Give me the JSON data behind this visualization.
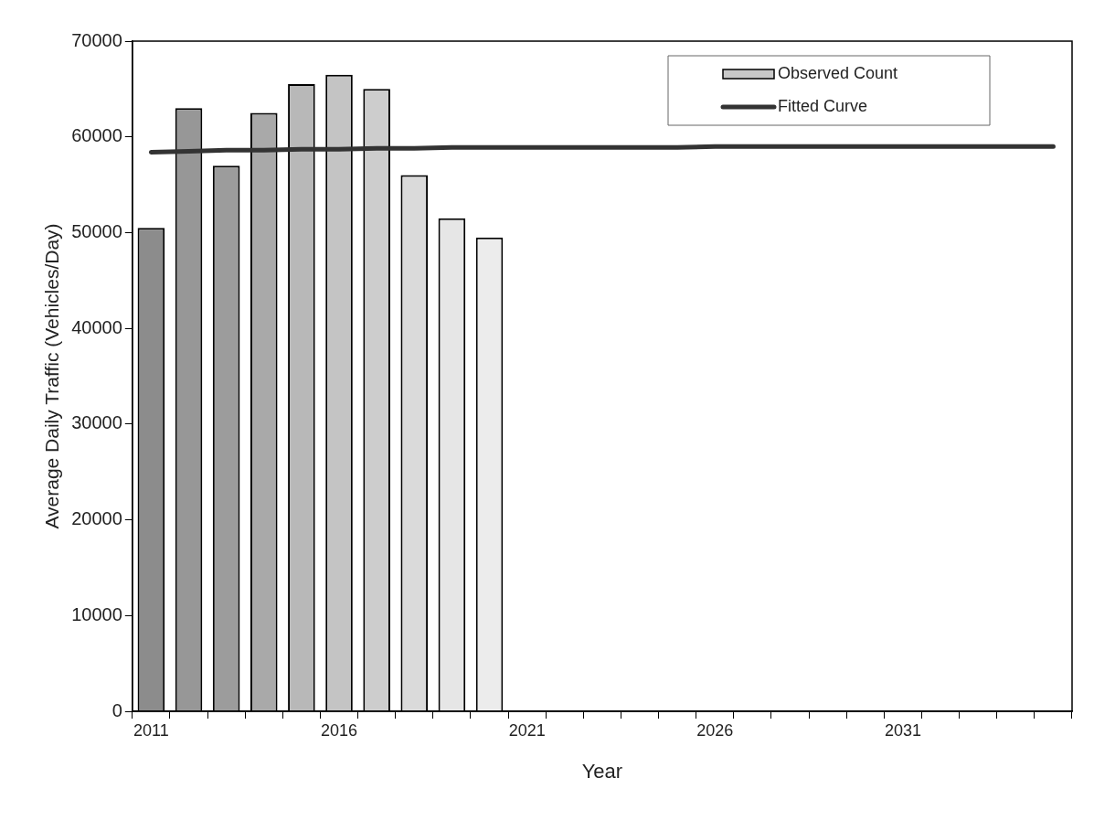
{
  "chart_data": {
    "type": "bar",
    "xlabel": "Year",
    "ylabel": "Average Daily Traffic (Vehicles/Day)",
    "categories": [
      "2011",
      null,
      null,
      null,
      null,
      "2016",
      null,
      null,
      null,
      null,
      "2021",
      null,
      null,
      null,
      null,
      "2026",
      null,
      null,
      null,
      null,
      "2031",
      null,
      null,
      null,
      null
    ],
    "series": [
      {
        "name": "Observed Count",
        "color": "#c8c8c8",
        "colors": [
          "#8c8c8c",
          "#979797",
          "#9c9c9c",
          "#a9a9a9",
          "#b8b8b8",
          "#c4c4c4",
          "#cdcdcd",
          "#dadada",
          "#e6e6e6",
          "#ececec",
          "#ececec",
          "#ececec",
          "#ececec",
          "#ececec",
          "#ececec",
          "#ececec",
          "#ececec",
          "#ececec",
          "#ececec",
          "#ececec",
          "#ececec",
          "#ececec",
          "#ececec",
          "#ececec",
          "#ececec"
        ],
        "values": [
          50500,
          63000,
          57000,
          62500,
          65500,
          66500,
          65000,
          56000,
          51500,
          49500,
          null,
          null,
          null,
          null,
          null,
          null,
          null,
          null,
          null,
          null,
          null,
          null,
          null,
          null,
          null
        ]
      },
      {
        "name": "Fitted Curve",
        "type": "line",
        "color": "#333333",
        "values": [
          58400,
          58500,
          58600,
          58600,
          58700,
          58700,
          58800,
          58800,
          58900,
          58900,
          58900,
          58900,
          58900,
          58900,
          58900,
          59000,
          59000,
          59000,
          59000,
          59000,
          59000,
          59000,
          59000,
          59000,
          59000
        ]
      }
    ],
    "ylim": [
      0,
      70000
    ],
    "yticks": [
      0,
      10000,
      20000,
      30000,
      40000,
      50000,
      60000,
      70000
    ],
    "grid": false,
    "legend": "top right",
    "marker": "none",
    "line_style": "solid"
  }
}
